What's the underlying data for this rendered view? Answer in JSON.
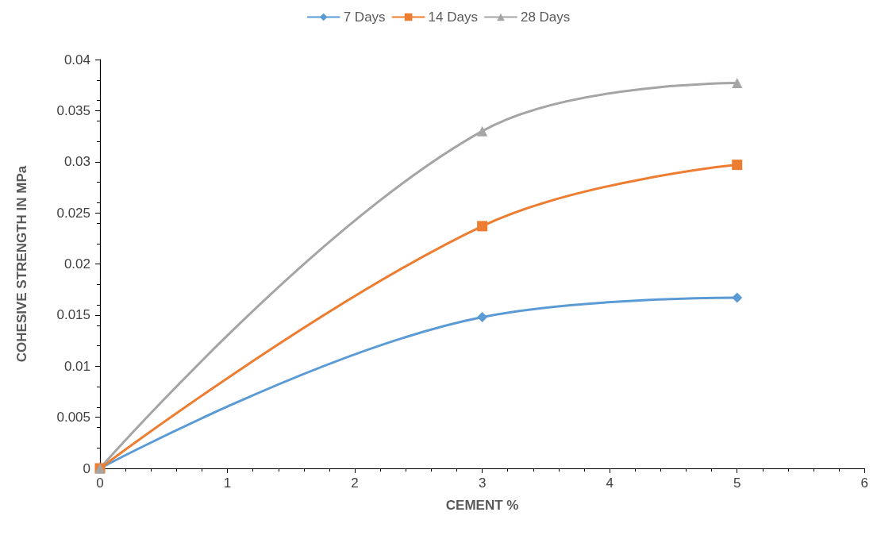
{
  "chart_data": {
    "type": "line",
    "xlabel": "CEMENT %",
    "ylabel": "COHESIVE STRENGTH IN MPa",
    "x": [
      0,
      3,
      5
    ],
    "series": [
      {
        "name": "7 Days",
        "color": "#5b9bd5",
        "marker": "diamond",
        "values": [
          0,
          0.0148,
          0.0167
        ]
      },
      {
        "name": "14 Days",
        "color": "#ed7d31",
        "marker": "square",
        "values": [
          0,
          0.0237,
          0.0297
        ]
      },
      {
        "name": "28 Days",
        "color": "#a5a5a5",
        "marker": "triangle",
        "values": [
          0,
          0.033,
          0.0377
        ]
      }
    ],
    "xlim": [
      0,
      6
    ],
    "xticks": [
      0,
      1,
      2,
      3,
      4,
      5,
      6
    ],
    "ylim": [
      0,
      0.04
    ],
    "yticks": [
      0,
      0.005,
      0.01,
      0.015,
      0.02,
      0.025,
      0.03,
      0.035,
      0.04
    ],
    "grid": false,
    "legend": "top"
  }
}
